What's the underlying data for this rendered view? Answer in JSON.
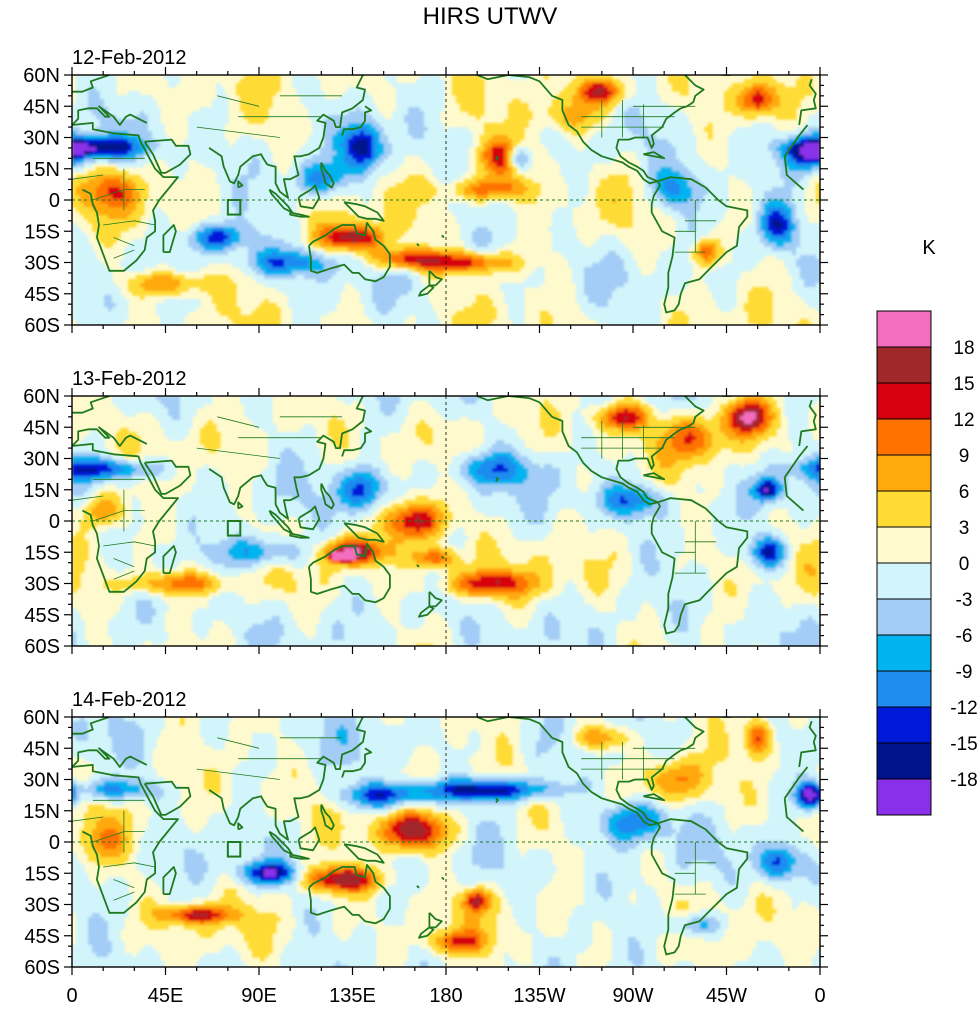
{
  "chart_data": {
    "type": "heatmap",
    "title": "HIRS UTWV",
    "units": "K",
    "colorbar": {
      "levels": [
        "18",
        "15",
        "12",
        "9",
        "6",
        "3",
        "0",
        "-3",
        "-6",
        "-9",
        "-12",
        "-15",
        "-18"
      ],
      "colors": [
        "#f46ec0",
        "#a0272a",
        "#d7000f",
        "#ff7200",
        "#ffa90f",
        "#ffdb34",
        "#fffacd",
        "#d2f4fb",
        "#a3cdf6",
        "#00b4ef",
        "#1e8cf0",
        "#0019d9",
        "#00128c",
        "#8a30ea"
      ]
    },
    "panels": [
      {
        "date": "12-Feb-2012",
        "features": [
          {
            "lon": 135,
            "lat": -18,
            "value": 15,
            "rx": 14,
            "ry": 6
          },
          {
            "lon": 160,
            "lat": -28,
            "value": 12,
            "rx": 15,
            "ry": 5
          },
          {
            "lon": 190,
            "lat": -30,
            "value": 12,
            "rx": 22,
            "ry": 5
          },
          {
            "lon": 210,
            "lat": 20,
            "value": 13,
            "rx": 14,
            "ry": 9
          },
          {
            "lon": 255,
            "lat": 52,
            "value": 12,
            "rx": 12,
            "ry": 6
          },
          {
            "lon": 330,
            "lat": 48,
            "value": 12,
            "rx": 8,
            "ry": 7
          },
          {
            "lon": 305,
            "lat": -25,
            "value": 12,
            "rx": 6,
            "ry": 6
          },
          {
            "lon": 20,
            "lat": 5,
            "value": 9,
            "rx": 12,
            "ry": 10
          },
          {
            "lon": 45,
            "lat": -40,
            "value": 9,
            "rx": 20,
            "ry": 6
          },
          {
            "lon": 200,
            "lat": 5,
            "value": 9,
            "rx": 20,
            "ry": 5
          },
          {
            "lon": 240,
            "lat": 40,
            "value": 6,
            "rx": 18,
            "ry": 8
          },
          {
            "lon": 10,
            "lat": 25,
            "value": -15,
            "rx": 22,
            "ry": 5
          },
          {
            "lon": 140,
            "lat": 25,
            "value": -15,
            "rx": 8,
            "ry": 10
          },
          {
            "lon": 215,
            "lat": 20,
            "value": -15,
            "rx": 6,
            "ry": 6
          },
          {
            "lon": 355,
            "lat": 22,
            "value": -12,
            "rx": 10,
            "ry": 8
          },
          {
            "lon": 70,
            "lat": -18,
            "value": -12,
            "rx": 12,
            "ry": 6
          },
          {
            "lon": 105,
            "lat": -30,
            "value": -9,
            "rx": 20,
            "ry": 6
          },
          {
            "lon": 290,
            "lat": 5,
            "value": -9,
            "rx": 12,
            "ry": 10
          },
          {
            "lon": 340,
            "lat": -12,
            "value": -12,
            "rx": 8,
            "ry": 10
          },
          {
            "lon": 120,
            "lat": 10,
            "value": -9,
            "rx": 14,
            "ry": 8
          }
        ]
      },
      {
        "date": "13-Feb-2012",
        "features": [
          {
            "lon": 135,
            "lat": -15,
            "value": 15,
            "rx": 16,
            "ry": 6
          },
          {
            "lon": 130,
            "lat": -17,
            "value": 18,
            "rx": 5,
            "ry": 2
          },
          {
            "lon": 165,
            "lat": 0,
            "value": 15,
            "rx": 14,
            "ry": 9
          },
          {
            "lon": 200,
            "lat": -30,
            "value": 12,
            "rx": 20,
            "ry": 6
          },
          {
            "lon": 175,
            "lat": -18,
            "value": 12,
            "rx": 10,
            "ry": 5
          },
          {
            "lon": 325,
            "lat": 50,
            "value": 15,
            "rx": 10,
            "ry": 8
          },
          {
            "lon": 265,
            "lat": 50,
            "value": 12,
            "rx": 12,
            "ry": 6
          },
          {
            "lon": 300,
            "lat": 40,
            "value": 9,
            "rx": 14,
            "ry": 10
          },
          {
            "lon": 50,
            "lat": -30,
            "value": 9,
            "rx": 25,
            "ry": 5
          },
          {
            "lon": 15,
            "lat": 5,
            "value": 9,
            "rx": 10,
            "ry": 8
          },
          {
            "lon": 15,
            "lat": 25,
            "value": -12,
            "rx": 25,
            "ry": 5
          },
          {
            "lon": 140,
            "lat": 15,
            "value": -12,
            "rx": 10,
            "ry": 10
          },
          {
            "lon": 95,
            "lat": -15,
            "value": -9,
            "rx": 25,
            "ry": 7
          },
          {
            "lon": 335,
            "lat": 15,
            "value": -15,
            "rx": 6,
            "ry": 5
          },
          {
            "lon": 335,
            "lat": -15,
            "value": -15,
            "rx": 8,
            "ry": 7
          },
          {
            "lon": 200,
            "lat": 25,
            "value": -9,
            "rx": 20,
            "ry": 8
          },
          {
            "lon": 270,
            "lat": 10,
            "value": -9,
            "rx": 14,
            "ry": 7
          }
        ]
      },
      {
        "date": "14-Feb-2012",
        "features": [
          {
            "lon": 130,
            "lat": -18,
            "value": 15,
            "rx": 18,
            "ry": 6
          },
          {
            "lon": 165,
            "lat": 5,
            "value": 15,
            "rx": 16,
            "ry": 9
          },
          {
            "lon": 195,
            "lat": -28,
            "value": 12,
            "rx": 6,
            "ry": 5
          },
          {
            "lon": 60,
            "lat": -35,
            "value": 12,
            "rx": 16,
            "ry": 4
          },
          {
            "lon": 330,
            "lat": 50,
            "value": 12,
            "rx": 6,
            "ry": 9
          },
          {
            "lon": 255,
            "lat": 50,
            "value": 9,
            "rx": 14,
            "ry": 6
          },
          {
            "lon": 290,
            "lat": 30,
            "value": 9,
            "rx": 12,
            "ry": 10
          },
          {
            "lon": 185,
            "lat": -48,
            "value": 9,
            "rx": 12,
            "ry": 5
          },
          {
            "lon": 15,
            "lat": 0,
            "value": 6,
            "rx": 12,
            "ry": 10
          },
          {
            "lon": 200,
            "lat": 25,
            "value": -15,
            "rx": 30,
            "ry": 5
          },
          {
            "lon": 150,
            "lat": 22,
            "value": -12,
            "rx": 20,
            "ry": 6
          },
          {
            "lon": 95,
            "lat": -15,
            "value": -15,
            "rx": 12,
            "ry": 5
          },
          {
            "lon": 355,
            "lat": 22,
            "value": -18,
            "rx": 6,
            "ry": 6
          },
          {
            "lon": 270,
            "lat": 10,
            "value": -12,
            "rx": 16,
            "ry": 10
          },
          {
            "lon": 340,
            "lat": -10,
            "value": -12,
            "rx": 8,
            "ry": 8
          },
          {
            "lon": 20,
            "lat": 25,
            "value": -9,
            "rx": 20,
            "ry": 5
          },
          {
            "lon": 300,
            "lat": -40,
            "value": -9,
            "rx": 12,
            "ry": 6
          }
        ]
      }
    ],
    "x_ticks": [
      "0",
      "45E",
      "90E",
      "135E",
      "180",
      "135W",
      "90W",
      "45W",
      "0"
    ],
    "y_ticks": [
      "60N",
      "45N",
      "30N",
      "15N",
      "0",
      "15S",
      "30S",
      "45S",
      "60S"
    ],
    "x_range": [
      0,
      360
    ],
    "y_range": [
      -60,
      60
    ]
  }
}
